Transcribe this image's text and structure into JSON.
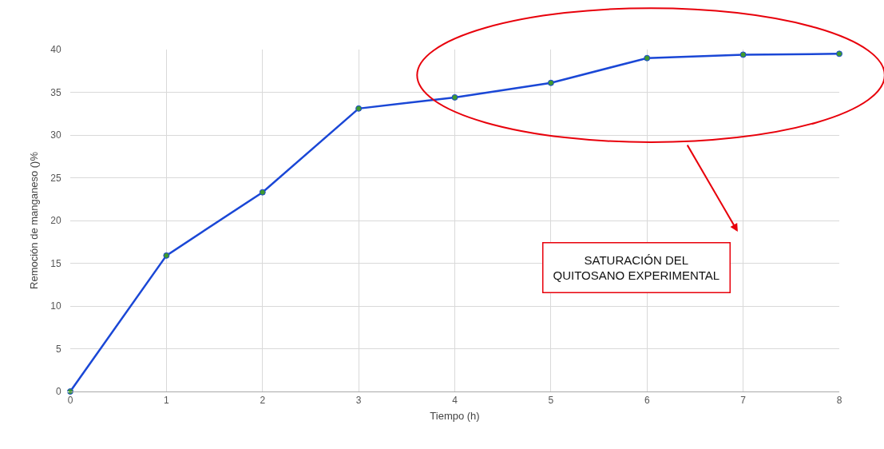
{
  "chart_data": {
    "type": "line",
    "xlabel": "Tiempo (h)",
    "ylabel": "Remoción de manganeso ()%",
    "x": [
      0,
      1,
      2,
      3,
      4,
      5,
      6,
      7,
      8
    ],
    "series": [
      {
        "color": "#1a47d6",
        "values": [
          0,
          15.9,
          23.3,
          33.1,
          34.4,
          36.1,
          39.0,
          39.4,
          39.5
        ]
      }
    ],
    "xlim": [
      0,
      8
    ],
    "xticks": [
      0,
      1,
      2,
      3,
      4,
      5,
      6,
      7,
      8
    ],
    "ylim": [
      0,
      40
    ],
    "yticks": [
      0,
      5,
      10,
      15,
      20,
      25,
      30,
      35,
      40
    ],
    "grid": true,
    "marker": "circle",
    "line_style": "solid",
    "annotations": [
      "SATURACIÓN DEL QUITOSANO EXPERIMENTAL"
    ]
  }
}
